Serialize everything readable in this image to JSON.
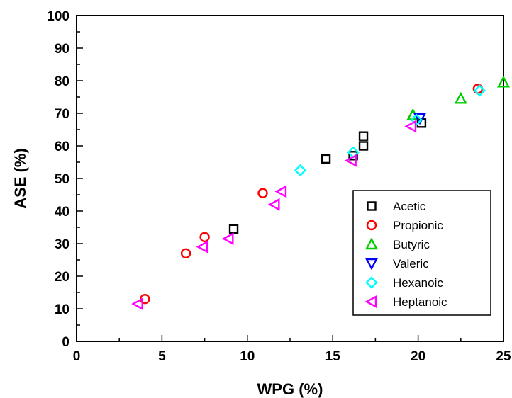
{
  "chart_data": {
    "type": "scatter",
    "xlabel": "WPG (%)",
    "ylabel": "ASE (%)",
    "xlim": [
      0,
      25
    ],
    "ylim": [
      0,
      100
    ],
    "xticks": [
      0,
      5,
      10,
      15,
      20,
      25
    ],
    "yticks": [
      0,
      10,
      20,
      30,
      40,
      50,
      60,
      70,
      80,
      90,
      100
    ],
    "grid": false,
    "legend_position": "lower-right",
    "series": [
      {
        "name": "Acetic",
        "marker": "square",
        "color": "#000000",
        "points": [
          [
            9.2,
            34.5
          ],
          [
            14.6,
            56.0
          ],
          [
            16.2,
            57.0
          ],
          [
            16.8,
            60.0
          ],
          [
            16.8,
            63.0
          ],
          [
            20.2,
            67.0
          ]
        ]
      },
      {
        "name": "Propionic",
        "marker": "circle",
        "color": "#ff0000",
        "points": [
          [
            4.0,
            13.0
          ],
          [
            6.4,
            27.0
          ],
          [
            7.5,
            32.0
          ],
          [
            10.9,
            45.5
          ],
          [
            23.5,
            77.5
          ]
        ]
      },
      {
        "name": "Butyric",
        "marker": "triangle-up",
        "color": "#00cc00",
        "points": [
          [
            19.7,
            69.5
          ],
          [
            22.5,
            74.5
          ],
          [
            25.0,
            79.5
          ]
        ]
      },
      {
        "name": "Valeric",
        "marker": "triangle-down",
        "color": "#0000ff",
        "points": [
          [
            20.1,
            68.5
          ]
        ]
      },
      {
        "name": "Hexanoic",
        "marker": "diamond",
        "color": "#00ffff",
        "points": [
          [
            13.1,
            52.5
          ],
          [
            16.2,
            58.0
          ],
          [
            19.9,
            68.0
          ],
          [
            23.6,
            77.0
          ]
        ]
      },
      {
        "name": "Heptanoic",
        "marker": "triangle-left",
        "color": "#ff00ff",
        "points": [
          [
            3.6,
            11.5
          ],
          [
            7.4,
            29.0
          ],
          [
            8.9,
            31.5
          ],
          [
            11.6,
            42.0
          ],
          [
            12.0,
            46.0
          ],
          [
            16.1,
            55.5
          ],
          [
            19.6,
            66.0
          ]
        ]
      }
    ]
  }
}
